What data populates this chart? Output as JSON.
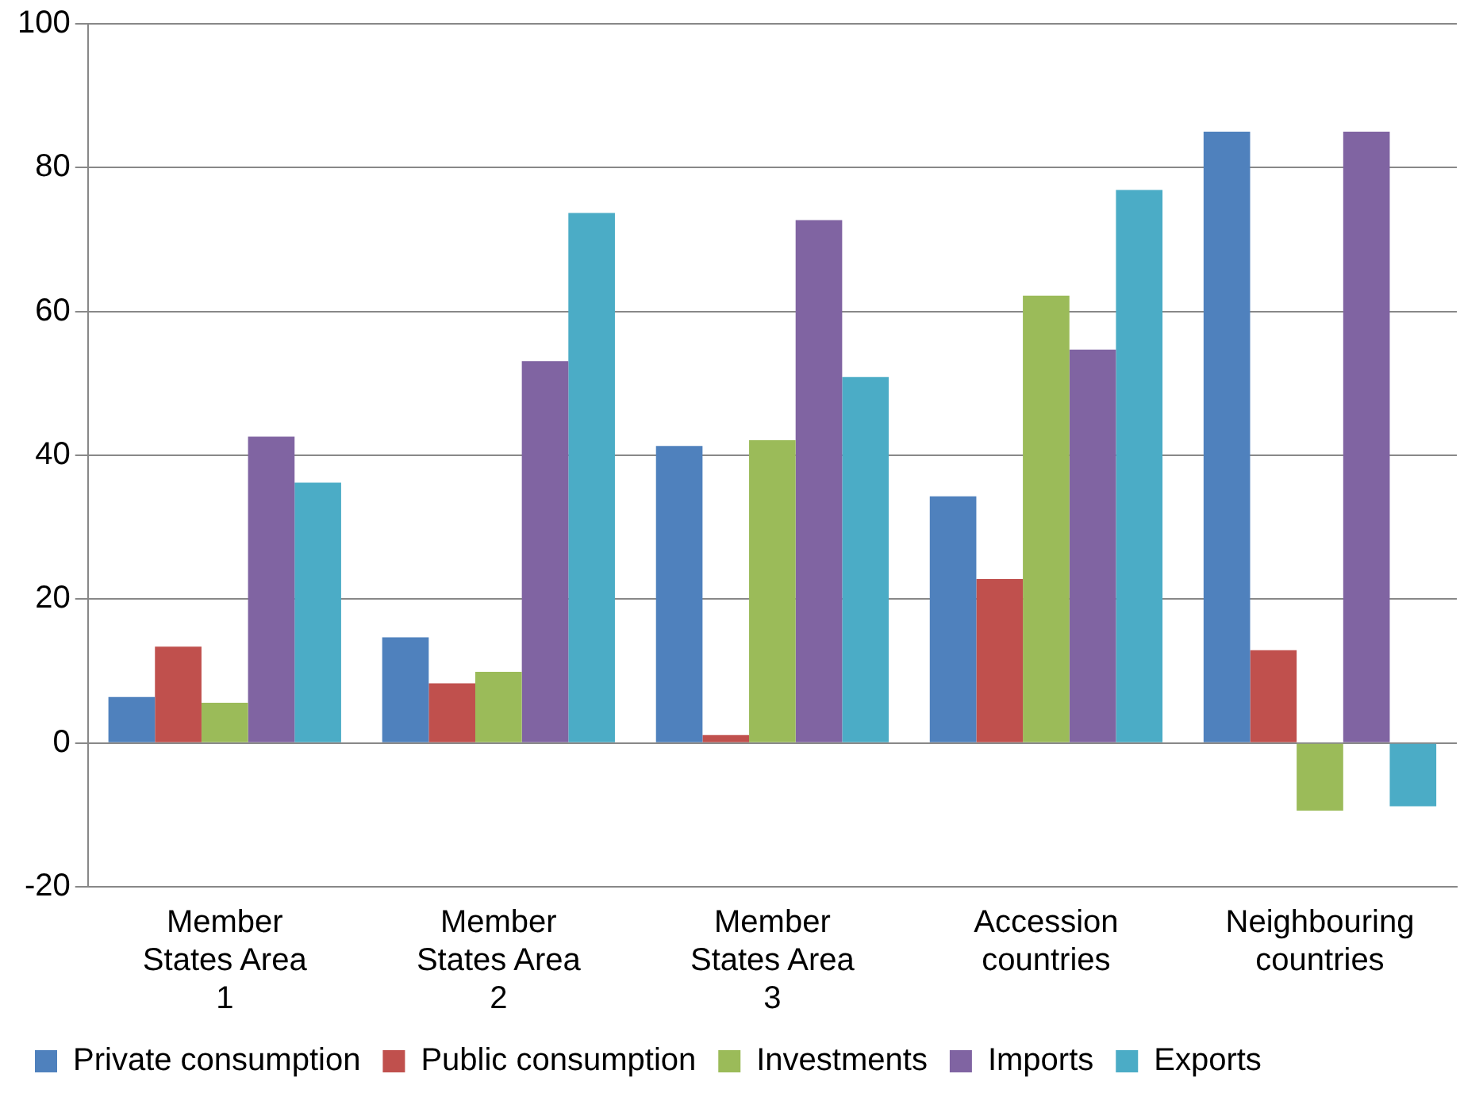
{
  "chart_data": {
    "type": "bar",
    "categories": [
      "Member States Area 1",
      "Member States Area 2",
      "Member States Area 3",
      "Accession countries",
      "Neighbouring countries"
    ],
    "series": [
      {
        "name": "Private consumption",
        "color": "#4f81bd",
        "values": [
          6.4,
          14.7,
          41.3,
          34.3,
          85.0
        ]
      },
      {
        "name": "Public consumption",
        "color": "#c0504d",
        "values": [
          13.4,
          8.3,
          1.1,
          22.8,
          12.9
        ]
      },
      {
        "name": "Investments",
        "color": "#9bbb59",
        "values": [
          5.6,
          9.9,
          42.1,
          62.2,
          -9.4
        ]
      },
      {
        "name": "Imports",
        "color": "#8064a2",
        "values": [
          42.6,
          53.1,
          72.7,
          54.7,
          85.0
        ]
      },
      {
        "name": "Exports",
        "color": "#4bacc6",
        "values": [
          36.2,
          73.7,
          50.9,
          76.9,
          -8.8
        ]
      }
    ],
    "ylim": [
      -20,
      100
    ],
    "yticks": [
      -20,
      0,
      20,
      40,
      60,
      80,
      100
    ],
    "grid": "y",
    "legend": "bottom"
  }
}
